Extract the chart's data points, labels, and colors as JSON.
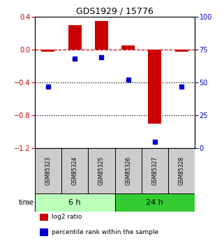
{
  "title": "GDS1929 / 15776",
  "samples": [
    "GSM85323",
    "GSM85324",
    "GSM85325",
    "GSM85326",
    "GSM85327",
    "GSM85328"
  ],
  "log2_ratio": [
    -0.02,
    0.3,
    0.35,
    0.05,
    -0.9,
    -0.02
  ],
  "percentile_rank": [
    47,
    68,
    69,
    52,
    5,
    47
  ],
  "groups": [
    {
      "label": "6 h",
      "indices": [
        0,
        1,
        2
      ],
      "color": "#bbffbb"
    },
    {
      "label": "24 h",
      "indices": [
        3,
        4,
        5
      ],
      "color": "#33cc33"
    }
  ],
  "bar_color": "#cc0000",
  "dot_color": "#0000cc",
  "ylim_left": [
    -1.2,
    0.4
  ],
  "ylim_right": [
    0,
    100
  ],
  "yticks_left": [
    0.4,
    0.0,
    -0.4,
    -0.8,
    -1.2
  ],
  "yticks_right": [
    100,
    75,
    50,
    25,
    0
  ],
  "hline_y": 0.0,
  "dotted_lines": [
    -0.4,
    -0.8
  ],
  "bg_color": "#ffffff",
  "plot_bg": "#ffffff",
  "time_label": "time",
  "legend_items": [
    {
      "label": "log2 ratio",
      "color": "#cc0000"
    },
    {
      "label": "percentile rank within the sample",
      "color": "#0000cc"
    }
  ],
  "sample_box_color": "#cccccc",
  "bar_width": 0.5
}
